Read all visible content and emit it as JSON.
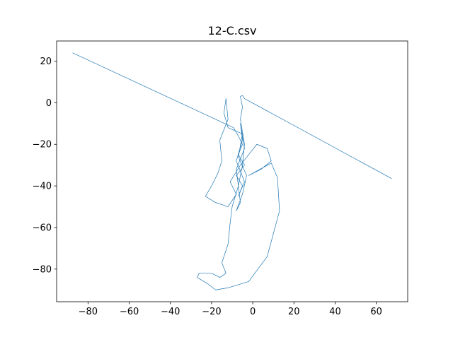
{
  "chart_data": {
    "type": "line",
    "title": "12-C.csv",
    "x": [
      -87.5,
      -9.3,
      -7,
      -5,
      -7,
      -4,
      -8,
      -5,
      -7,
      -4,
      -8,
      -5,
      -6,
      -4,
      -8,
      -6,
      -8,
      -5,
      -3,
      -7,
      -5,
      -12,
      -14,
      -13,
      -12,
      -16,
      -15,
      -17,
      -20,
      -23,
      -18,
      -12,
      -8,
      -11,
      -6,
      -2,
      2,
      7,
      9,
      4,
      -2,
      9,
      12,
      13,
      7,
      -2,
      -12,
      -18,
      -22,
      -27,
      -26,
      -20,
      -16,
      -13,
      -15,
      -12,
      -11,
      -10,
      -7,
      -5,
      -4,
      -6,
      -5,
      -6,
      -5,
      -4,
      67.5
    ],
    "values": [
      24,
      -12,
      -16,
      -20,
      -25,
      -30,
      -35,
      -40,
      -45,
      -38,
      -28,
      -18,
      -10,
      -22,
      -32,
      -48,
      -52,
      -44,
      -35,
      -26,
      -15,
      -12,
      -5,
      2,
      -8,
      -18,
      -28,
      -34,
      -40,
      -45,
      -48,
      -50,
      -44,
      -38,
      -30,
      -25,
      -20,
      -22,
      -28,
      -32,
      -35,
      -29,
      -36,
      -52,
      -74,
      -86,
      -89,
      -90,
      -87,
      -84,
      -82,
      -82,
      -84,
      -82,
      -77,
      -68,
      -58,
      -50,
      -40,
      -30,
      -20,
      -8,
      -2,
      3,
      3.5,
      2,
      -36.5
    ],
    "color": "#1f77b4",
    "xlim": [
      -95.25,
      75.25
    ],
    "ylim": [
      -95.7,
      29.7
    ],
    "xticks": [
      {
        "value": -80,
        "label": "−80"
      },
      {
        "value": -60,
        "label": "−60"
      },
      {
        "value": -40,
        "label": "−40"
      },
      {
        "value": -20,
        "label": "−20"
      },
      0,
      20,
      40,
      60
    ],
    "yticks": [
      {
        "value": -80,
        "label": "−80"
      },
      {
        "value": -60,
        "label": "−60"
      },
      {
        "value": -40,
        "label": "−40"
      },
      {
        "value": -20,
        "label": "−20"
      },
      0,
      20
    ],
    "grid": false
  }
}
